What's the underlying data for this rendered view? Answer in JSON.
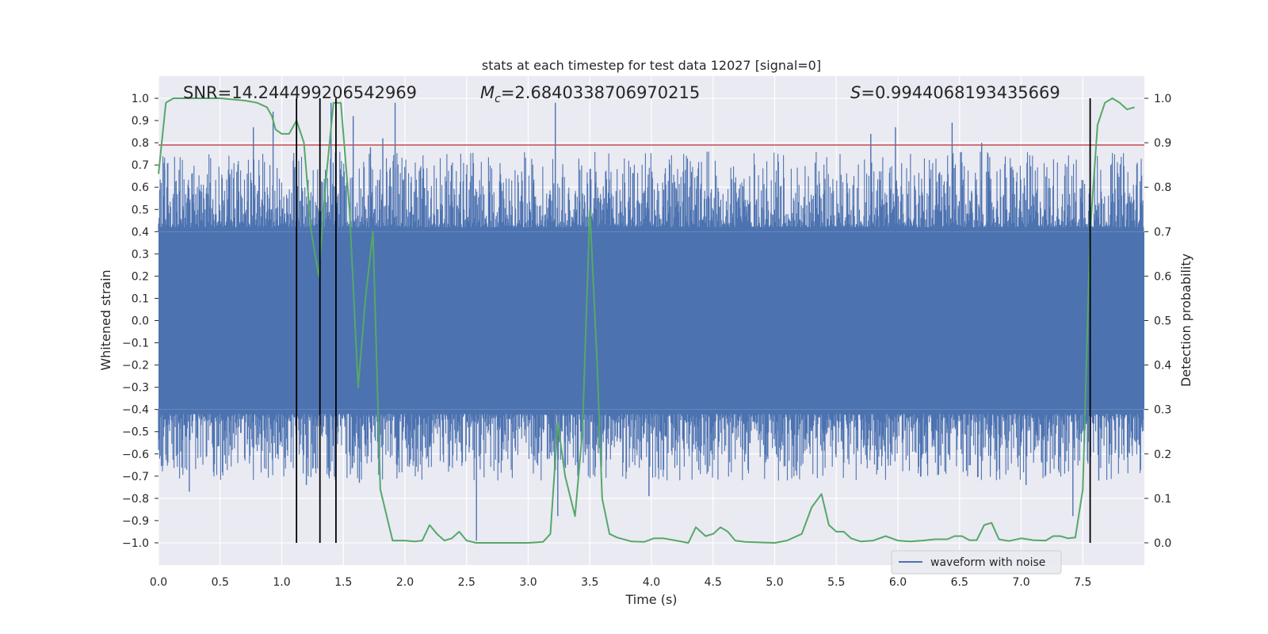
{
  "chart_data": {
    "type": "line",
    "title": "stats at each timestep for test data 12027 [signal=0]",
    "xlabel": "Time (s)",
    "ylabel": "Whitened strain",
    "ylabel_right": "Detection probability",
    "xlim": [
      0.0,
      8.0
    ],
    "ylim": [
      -1.1,
      1.1
    ],
    "ylim_right": [
      -0.05,
      1.05
    ],
    "x_ticks": [
      "0.0",
      "0.5",
      "1.0",
      "1.5",
      "2.0",
      "2.5",
      "3.0",
      "3.5",
      "4.0",
      "4.5",
      "5.0",
      "5.5",
      "6.0",
      "6.5",
      "7.0",
      "7.5"
    ],
    "y_ticks": [
      "1.0",
      "0.9",
      "0.8",
      "0.7",
      "0.6",
      "0.5",
      "0.4",
      "0.3",
      "0.2",
      "0.1",
      "0.0",
      "−0.1",
      "−0.2",
      "−0.3",
      "−0.4",
      "−0.5",
      "−0.6",
      "−0.7",
      "−0.8",
      "−0.9",
      "−1.0"
    ],
    "y_ticks_right": [
      "1.0",
      "0.9",
      "0.8",
      "0.7",
      "0.6",
      "0.5",
      "0.4",
      "0.3",
      "0.2",
      "0.1",
      "0.0"
    ],
    "annotations": {
      "snr": "SNR=14.244499206542969",
      "mc_symbol": "M",
      "mc_sub": "c",
      "mc_value": "=2.6840338706970215",
      "s_symbol": "S",
      "s_value": "=0.9944068193435669"
    },
    "threshold_y": 0.79,
    "event_lines_x": [
      1.12,
      1.31,
      1.44,
      7.56
    ],
    "legend": [
      {
        "label": "waveform with noise",
        "color": "#4c72b0"
      }
    ],
    "series": [
      {
        "name": "waveform with noise",
        "axis": "left",
        "color": "#4c72b0",
        "style": "noise-band",
        "core_upper": 0.4,
        "core_lower": -0.4,
        "spikes": [
          {
            "x": 0.05,
            "y": 0.68
          },
          {
            "x": 0.25,
            "y": -0.77
          },
          {
            "x": 0.42,
            "y": 0.62
          },
          {
            "x": 0.77,
            "y": 0.87
          },
          {
            "x": 0.93,
            "y": 0.94
          },
          {
            "x": 1.2,
            "y": -0.74
          },
          {
            "x": 1.4,
            "y": 0.98
          },
          {
            "x": 1.58,
            "y": 0.92
          },
          {
            "x": 1.63,
            "y": -0.73
          },
          {
            "x": 1.72,
            "y": 0.78
          },
          {
            "x": 1.82,
            "y": 0.82
          },
          {
            "x": 1.92,
            "y": 0.98
          },
          {
            "x": 2.58,
            "y": -0.99
          },
          {
            "x": 3.22,
            "y": 0.98
          },
          {
            "x": 3.24,
            "y": -0.88
          },
          {
            "x": 3.98,
            "y": -0.79
          },
          {
            "x": 5.78,
            "y": 0.84
          },
          {
            "x": 5.98,
            "y": 0.87
          },
          {
            "x": 6.44,
            "y": 0.89
          },
          {
            "x": 6.68,
            "y": 0.8
          },
          {
            "x": 7.04,
            "y": -0.74
          },
          {
            "x": 7.42,
            "y": -0.88
          },
          {
            "x": 7.56,
            "y": 0.79
          },
          {
            "x": 7.63,
            "y": -0.72
          }
        ]
      },
      {
        "name": "Detection probability",
        "axis": "right",
        "color": "#55a868",
        "x": [
          0.0,
          0.06,
          0.12,
          0.5,
          0.7,
          0.8,
          0.88,
          0.92,
          0.95,
          1.0,
          1.06,
          1.12,
          1.18,
          1.24,
          1.3,
          1.36,
          1.42,
          1.48,
          1.55,
          1.62,
          1.68,
          1.74,
          1.8,
          1.9,
          2.0,
          2.08,
          2.14,
          2.2,
          2.26,
          2.32,
          2.38,
          2.44,
          2.5,
          2.58,
          3.0,
          3.12,
          3.18,
          3.24,
          3.3,
          3.38,
          3.44,
          3.5,
          3.56,
          3.6,
          3.66,
          3.72,
          3.84,
          3.94,
          4.02,
          4.1,
          4.2,
          4.3,
          4.36,
          4.44,
          4.5,
          4.56,
          4.62,
          4.68,
          4.76,
          5.0,
          5.1,
          5.22,
          5.3,
          5.38,
          5.44,
          5.5,
          5.56,
          5.62,
          5.7,
          5.8,
          5.9,
          6.0,
          6.1,
          6.2,
          6.3,
          6.4,
          6.46,
          6.52,
          6.58,
          6.64,
          6.7,
          6.76,
          6.82,
          6.9,
          7.0,
          7.1,
          7.2,
          7.26,
          7.32,
          7.38,
          7.44,
          7.5,
          7.56,
          7.62,
          7.68,
          7.74,
          7.8,
          7.86,
          7.92
        ],
        "y": [
          0.83,
          0.99,
          1.0,
          1.0,
          0.995,
          0.99,
          0.98,
          0.96,
          0.93,
          0.92,
          0.92,
          0.95,
          0.9,
          0.7,
          0.6,
          0.82,
          0.99,
          0.99,
          0.75,
          0.35,
          0.55,
          0.7,
          0.12,
          0.005,
          0.005,
          0.003,
          0.005,
          0.04,
          0.02,
          0.005,
          0.01,
          0.025,
          0.005,
          0.0,
          0.0,
          0.002,
          0.02,
          0.27,
          0.15,
          0.06,
          0.25,
          0.75,
          0.4,
          0.1,
          0.02,
          0.012,
          0.003,
          0.002,
          0.01,
          0.01,
          0.005,
          0.0,
          0.035,
          0.015,
          0.02,
          0.035,
          0.025,
          0.005,
          0.002,
          0.0,
          0.005,
          0.02,
          0.08,
          0.11,
          0.04,
          0.025,
          0.025,
          0.01,
          0.003,
          0.005,
          0.015,
          0.005,
          0.003,
          0.005,
          0.008,
          0.008,
          0.015,
          0.015,
          0.006,
          0.006,
          0.04,
          0.045,
          0.008,
          0.004,
          0.01,
          0.006,
          0.005,
          0.015,
          0.015,
          0.01,
          0.012,
          0.12,
          0.7,
          0.94,
          0.99,
          1.0,
          0.99,
          0.975,
          0.98
        ]
      }
    ]
  }
}
